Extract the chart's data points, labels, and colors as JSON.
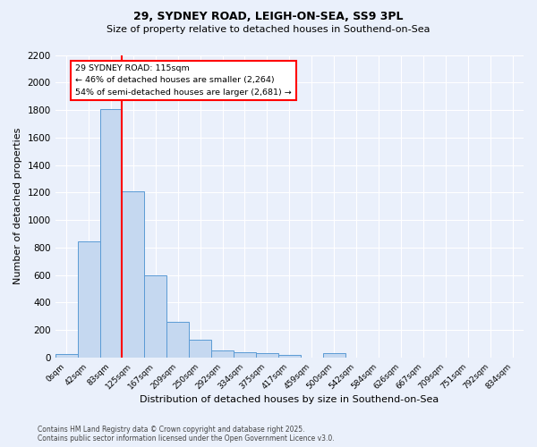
{
  "title1": "29, SYDNEY ROAD, LEIGH-ON-SEA, SS9 3PL",
  "title2": "Size of property relative to detached houses in Southend-on-Sea",
  "xlabel": "Distribution of detached houses by size in Southend-on-Sea",
  "ylabel": "Number of detached properties",
  "bin_labels": [
    "0sqm",
    "42sqm",
    "83sqm",
    "125sqm",
    "167sqm",
    "209sqm",
    "250sqm",
    "292sqm",
    "334sqm",
    "375sqm",
    "417sqm",
    "459sqm",
    "500sqm",
    "542sqm",
    "584sqm",
    "626sqm",
    "667sqm",
    "709sqm",
    "751sqm",
    "792sqm",
    "834sqm"
  ],
  "bar_values": [
    25,
    845,
    1810,
    1210,
    600,
    260,
    130,
    50,
    40,
    30,
    20,
    0,
    30,
    0,
    0,
    0,
    0,
    0,
    0,
    0,
    0
  ],
  "bar_color": "#c5d8f0",
  "bar_edge_color": "#5b9bd5",
  "vline_pos": 2.5,
  "vline_color": "red",
  "annotation_title": "29 SYDNEY ROAD: 115sqm",
  "annotation_line1": "← 46% of detached houses are smaller (2,264)",
  "annotation_line2": "54% of semi-detached houses are larger (2,681) →",
  "annotation_box_color": "white",
  "annotation_box_edge": "red",
  "ylim": [
    0,
    2200
  ],
  "yticks": [
    0,
    200,
    400,
    600,
    800,
    1000,
    1200,
    1400,
    1600,
    1800,
    2000,
    2200
  ],
  "footer1": "Contains HM Land Registry data © Crown copyright and database right 2025.",
  "footer2": "Contains public sector information licensed under the Open Government Licence v3.0.",
  "bg_color": "#eaf0fb"
}
